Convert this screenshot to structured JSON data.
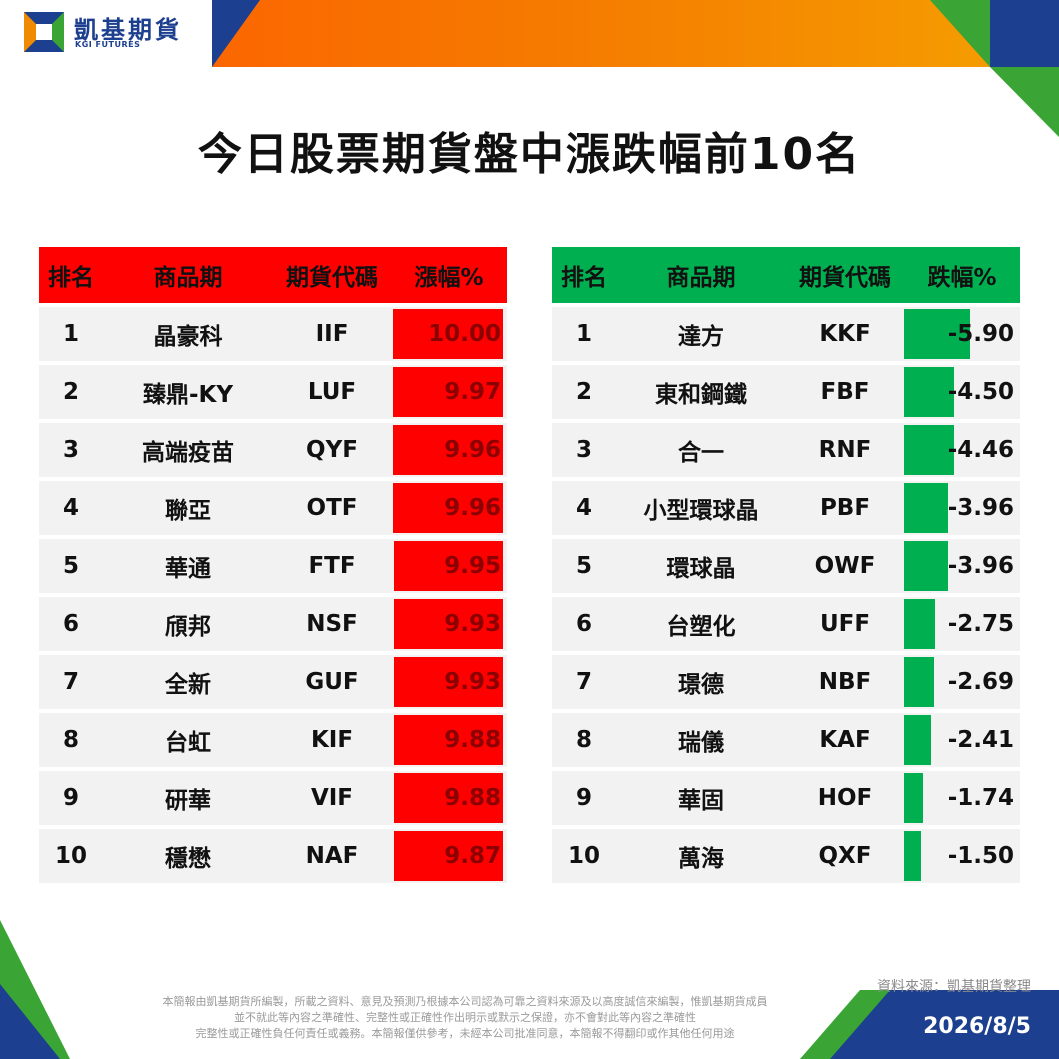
{
  "brand": {
    "name_cn": "凱基期貨",
    "name_en": "KGI FUTURES"
  },
  "title": "今日股票期貨盤中漲跌幅前10名",
  "gainers": {
    "headers": [
      "排名",
      "商品期",
      "期貨代碼",
      "漲幅%"
    ],
    "rows": [
      {
        "rank": "1",
        "name": "晶豪科",
        "code": "IIF",
        "value": "10.00",
        "pct": 10.0
      },
      {
        "rank": "2",
        "name": "臻鼎-KY",
        "code": "LUF",
        "value": "9.97",
        "pct": 9.97
      },
      {
        "rank": "3",
        "name": "高端疫苗",
        "code": "QYF",
        "value": "9.96",
        "pct": 9.96
      },
      {
        "rank": "4",
        "name": "聯亞",
        "code": "OTF",
        "value": "9.96",
        "pct": 9.96
      },
      {
        "rank": "5",
        "name": "華通",
        "code": "FTF",
        "value": "9.95",
        "pct": 9.95
      },
      {
        "rank": "6",
        "name": "頎邦",
        "code": "NSF",
        "value": "9.93",
        "pct": 9.93
      },
      {
        "rank": "7",
        "name": "全新",
        "code": "GUF",
        "value": "9.93",
        "pct": 9.93
      },
      {
        "rank": "8",
        "name": "台虹",
        "code": "KIF",
        "value": "9.88",
        "pct": 9.88
      },
      {
        "rank": "9",
        "name": "研華",
        "code": "VIF",
        "value": "9.88",
        "pct": 9.88
      },
      {
        "rank": "10",
        "name": "穩懋",
        "code": "NAF",
        "value": "9.87",
        "pct": 9.87
      }
    ]
  },
  "losers": {
    "headers": [
      "排名",
      "商品期",
      "期貨代碼",
      "跌幅%"
    ],
    "rows": [
      {
        "rank": "1",
        "name": "達方",
        "code": "KKF",
        "value": "-5.90",
        "pct": -5.9
      },
      {
        "rank": "2",
        "name": "東和鋼鐵",
        "code": "FBF",
        "value": "-4.50",
        "pct": -4.5
      },
      {
        "rank": "3",
        "name": "合一",
        "code": "RNF",
        "value": "-4.46",
        "pct": -4.46
      },
      {
        "rank": "4",
        "name": "小型環球晶",
        "code": "PBF",
        "value": "-3.96",
        "pct": -3.96
      },
      {
        "rank": "5",
        "name": "環球晶",
        "code": "OWF",
        "value": "-3.96",
        "pct": -3.96
      },
      {
        "rank": "6",
        "name": "台塑化",
        "code": "UFF",
        "value": "-2.75",
        "pct": -2.75
      },
      {
        "rank": "7",
        "name": "璟德",
        "code": "NBF",
        "value": "-2.69",
        "pct": -2.69
      },
      {
        "rank": "8",
        "name": "瑞儀",
        "code": "KAF",
        "value": "-2.41",
        "pct": -2.41
      },
      {
        "rank": "9",
        "name": "華固",
        "code": "HOF",
        "value": "-1.74",
        "pct": -1.74
      },
      {
        "rank": "10",
        "name": "萬海",
        "code": "QXF",
        "value": "-1.50",
        "pct": -1.5
      }
    ]
  },
  "source": "資料來源：凱基期貨整理",
  "disclaimer": [
    "本簡報由凱基期貨所編製，所載之資料、意見及預測乃根據本公司認為可靠之資料來源及以高度誠信來編製，惟凱基期貨成員",
    "並不就此等內容之準確性、完整性或正確性作出明示或默示之保證，亦不會對此等內容之準確性",
    "完整性或正確性負任何責任或義務。本簡報僅供參考，未經本公司批准同意，本簡報不得翻印或作其他任何用途"
  ],
  "date": "2026/8/5",
  "colors": {
    "brand_blue": "#1d3f8f",
    "gain": "#ff0000",
    "loss": "#00b050",
    "orange": "#f08a00",
    "green": "#3aa535"
  }
}
